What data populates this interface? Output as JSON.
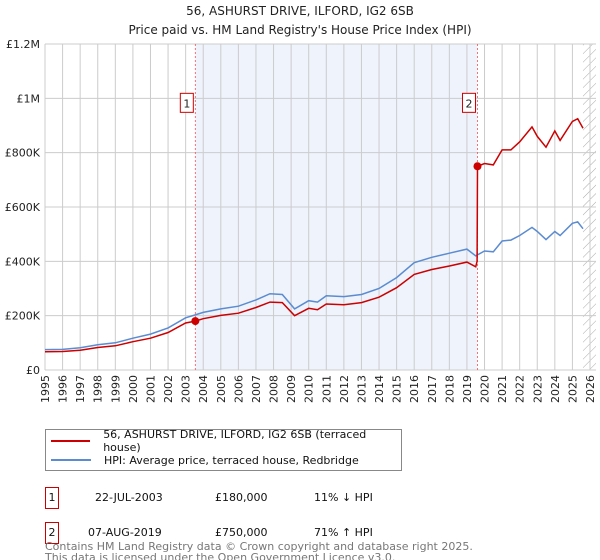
{
  "chart_data": {
    "type": "line",
    "title": "56, ASHURST DRIVE, ILFORD, IG2 6SB",
    "subtitle": "Price paid vs. HM Land Registry's House Price Index (HPI)",
    "xlim": [
      1995,
      2026
    ],
    "ylim": [
      0,
      1200000
    ],
    "x_ticks": [
      "1995",
      "1996",
      "1997",
      "1998",
      "1999",
      "2000",
      "2001",
      "2002",
      "2003",
      "2004",
      "2005",
      "2006",
      "2007",
      "2008",
      "2009",
      "2010",
      "2011",
      "2012",
      "2013",
      "2014",
      "2015",
      "2016",
      "2017",
      "2018",
      "2019",
      "2020",
      "2021",
      "2022",
      "2023",
      "2024",
      "2025",
      "2026"
    ],
    "y_ticks": [
      {
        "value": 0,
        "label": "£0"
      },
      {
        "value": 200000,
        "label": "£200K"
      },
      {
        "value": 400000,
        "label": "£400K"
      },
      {
        "value": 600000,
        "label": "£600K"
      },
      {
        "value": 800000,
        "label": "£800K"
      },
      {
        "value": 1000000,
        "label": "£1M"
      },
      {
        "value": 1200000,
        "label": "£1.2M"
      }
    ],
    "grid": true,
    "shaded_range": [
      2003.55,
      2019.6
    ],
    "forecast_hatch_from": 2025.6,
    "series": [
      {
        "name": "56, ASHURST DRIVE, ILFORD, IG2 6SB (terraced house)",
        "color": "#cc0000",
        "x": [
          1995,
          1996,
          1997,
          1998,
          1999,
          2000,
          2001,
          2002,
          2003,
          2003.55,
          2004,
          2005,
          2006,
          2007,
          2007.8,
          2008.5,
          2009.2,
          2010,
          2010.5,
          2011,
          2012,
          2013,
          2014,
          2015,
          2016,
          2017,
          2018,
          2019,
          2019.5,
          2019.58,
          2019.6,
          2020,
          2020.5,
          2021,
          2021.5,
          2022,
          2022.7,
          2023,
          2023.5,
          2024,
          2024.3,
          2025,
          2025.3,
          2025.6
        ],
        "y": [
          67000,
          68000,
          73000,
          83000,
          89000,
          104000,
          117000,
          138000,
          173000,
          180000,
          189000,
          201000,
          209000,
          230000,
          250000,
          248000,
          200000,
          227000,
          222000,
          243000,
          240000,
          248000,
          268000,
          303000,
          352000,
          370000,
          383000,
          397000,
          380000,
          400000,
          750000,
          760000,
          755000,
          810000,
          810000,
          840000,
          895000,
          860000,
          820000,
          880000,
          845000,
          915000,
          925000,
          890000
        ]
      },
      {
        "name": "HPI: Average price, terraced house, Redbridge",
        "color": "#5b8bd0",
        "x": [
          1995,
          1996,
          1997,
          1998,
          1999,
          2000,
          2001,
          2002,
          2003,
          2003.55,
          2004,
          2005,
          2006,
          2007,
          2007.8,
          2008.5,
          2009.2,
          2010,
          2010.5,
          2011,
          2012,
          2013,
          2014,
          2015,
          2016,
          2017,
          2018,
          2019,
          2019.5,
          2020,
          2020.5,
          2021,
          2021.5,
          2022,
          2022.7,
          2023,
          2023.5,
          2024,
          2024.3,
          2025,
          2025.3,
          2025.6
        ],
        "y": [
          75000,
          76000,
          82000,
          93000,
          100000,
          117000,
          132000,
          155000,
          192000,
          203000,
          212000,
          225000,
          235000,
          258000,
          281000,
          278000,
          225000,
          255000,
          250000,
          273000,
          270000,
          278000,
          300000,
          340000,
          395000,
          415000,
          430000,
          445000,
          420000,
          438000,
          435000,
          475000,
          478000,
          495000,
          525000,
          510000,
          480000,
          510000,
          495000,
          540000,
          545000,
          520000
        ]
      }
    ],
    "sales": [
      {
        "label": "1",
        "x": 2003.55,
        "y": 180000
      },
      {
        "label": "2",
        "x": 2019.6,
        "y": 750000
      }
    ]
  },
  "legend": {
    "red": "56, ASHURST DRIVE, ILFORD, IG2 6SB (terraced house)",
    "blue": "HPI: Average price, terraced house, Redbridge"
  },
  "transactions": [
    {
      "num": "1",
      "date": "22-JUL-2003",
      "price": "£180,000",
      "hpi": "11% ↓ HPI"
    },
    {
      "num": "2",
      "date": "07-AUG-2019",
      "price": "£750,000",
      "hpi": "71% ↑ HPI"
    }
  ],
  "footer": {
    "line1": "Contains HM Land Registry data © Crown copyright and database right 2025.",
    "line2": "This data is licensed under the Open Government Licence v3.0."
  }
}
